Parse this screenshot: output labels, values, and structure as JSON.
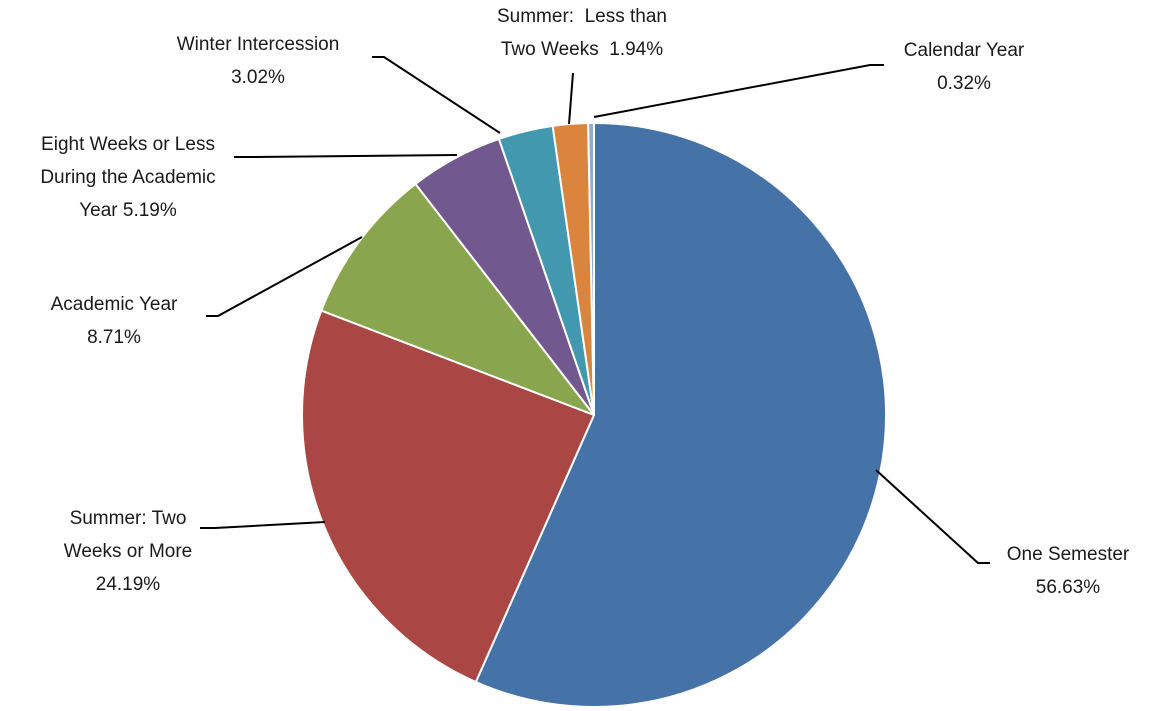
{
  "chart_data": {
    "type": "pie",
    "title": "",
    "slices": [
      {
        "label_lines": [
          "One Semester",
          "56.63%"
        ],
        "name": "One Semester",
        "value": 56.63,
        "color": "#4572A7"
      },
      {
        "label_lines": [
          "Summer: Two",
          "Weeks or More",
          "24.19%"
        ],
        "name": "Summer: Two Weeks or More",
        "value": 24.19,
        "color": "#AA4643"
      },
      {
        "label_lines": [
          "Academic Year",
          "8.71%"
        ],
        "name": "Academic Year",
        "value": 8.71,
        "color": "#89A54E"
      },
      {
        "label_lines": [
          "Eight Weeks or Less",
          "During the Academic",
          "Year 5.19%"
        ],
        "name": "Eight Weeks or Less During the Academic Year",
        "value": 5.19,
        "color": "#71588F"
      },
      {
        "label_lines": [
          "Winter Intercession",
          "3.02%"
        ],
        "name": "Winter Intercession",
        "value": 3.02,
        "color": "#4198AF"
      },
      {
        "label_lines": [
          "Summer:  Less than",
          "Two Weeks  1.94%"
        ],
        "name": "Summer: Less than Two Weeks",
        "value": 1.94,
        "color": "#DB843D"
      },
      {
        "label_lines": [
          "Calendar Year",
          "0.32%"
        ],
        "name": "Calendar Year",
        "value": 0.32,
        "color": "#93A9CF"
      }
    ],
    "start_angle": "12 o'clock",
    "direction": "clockwise",
    "legend": "none",
    "labels": "outside with leader lines"
  }
}
